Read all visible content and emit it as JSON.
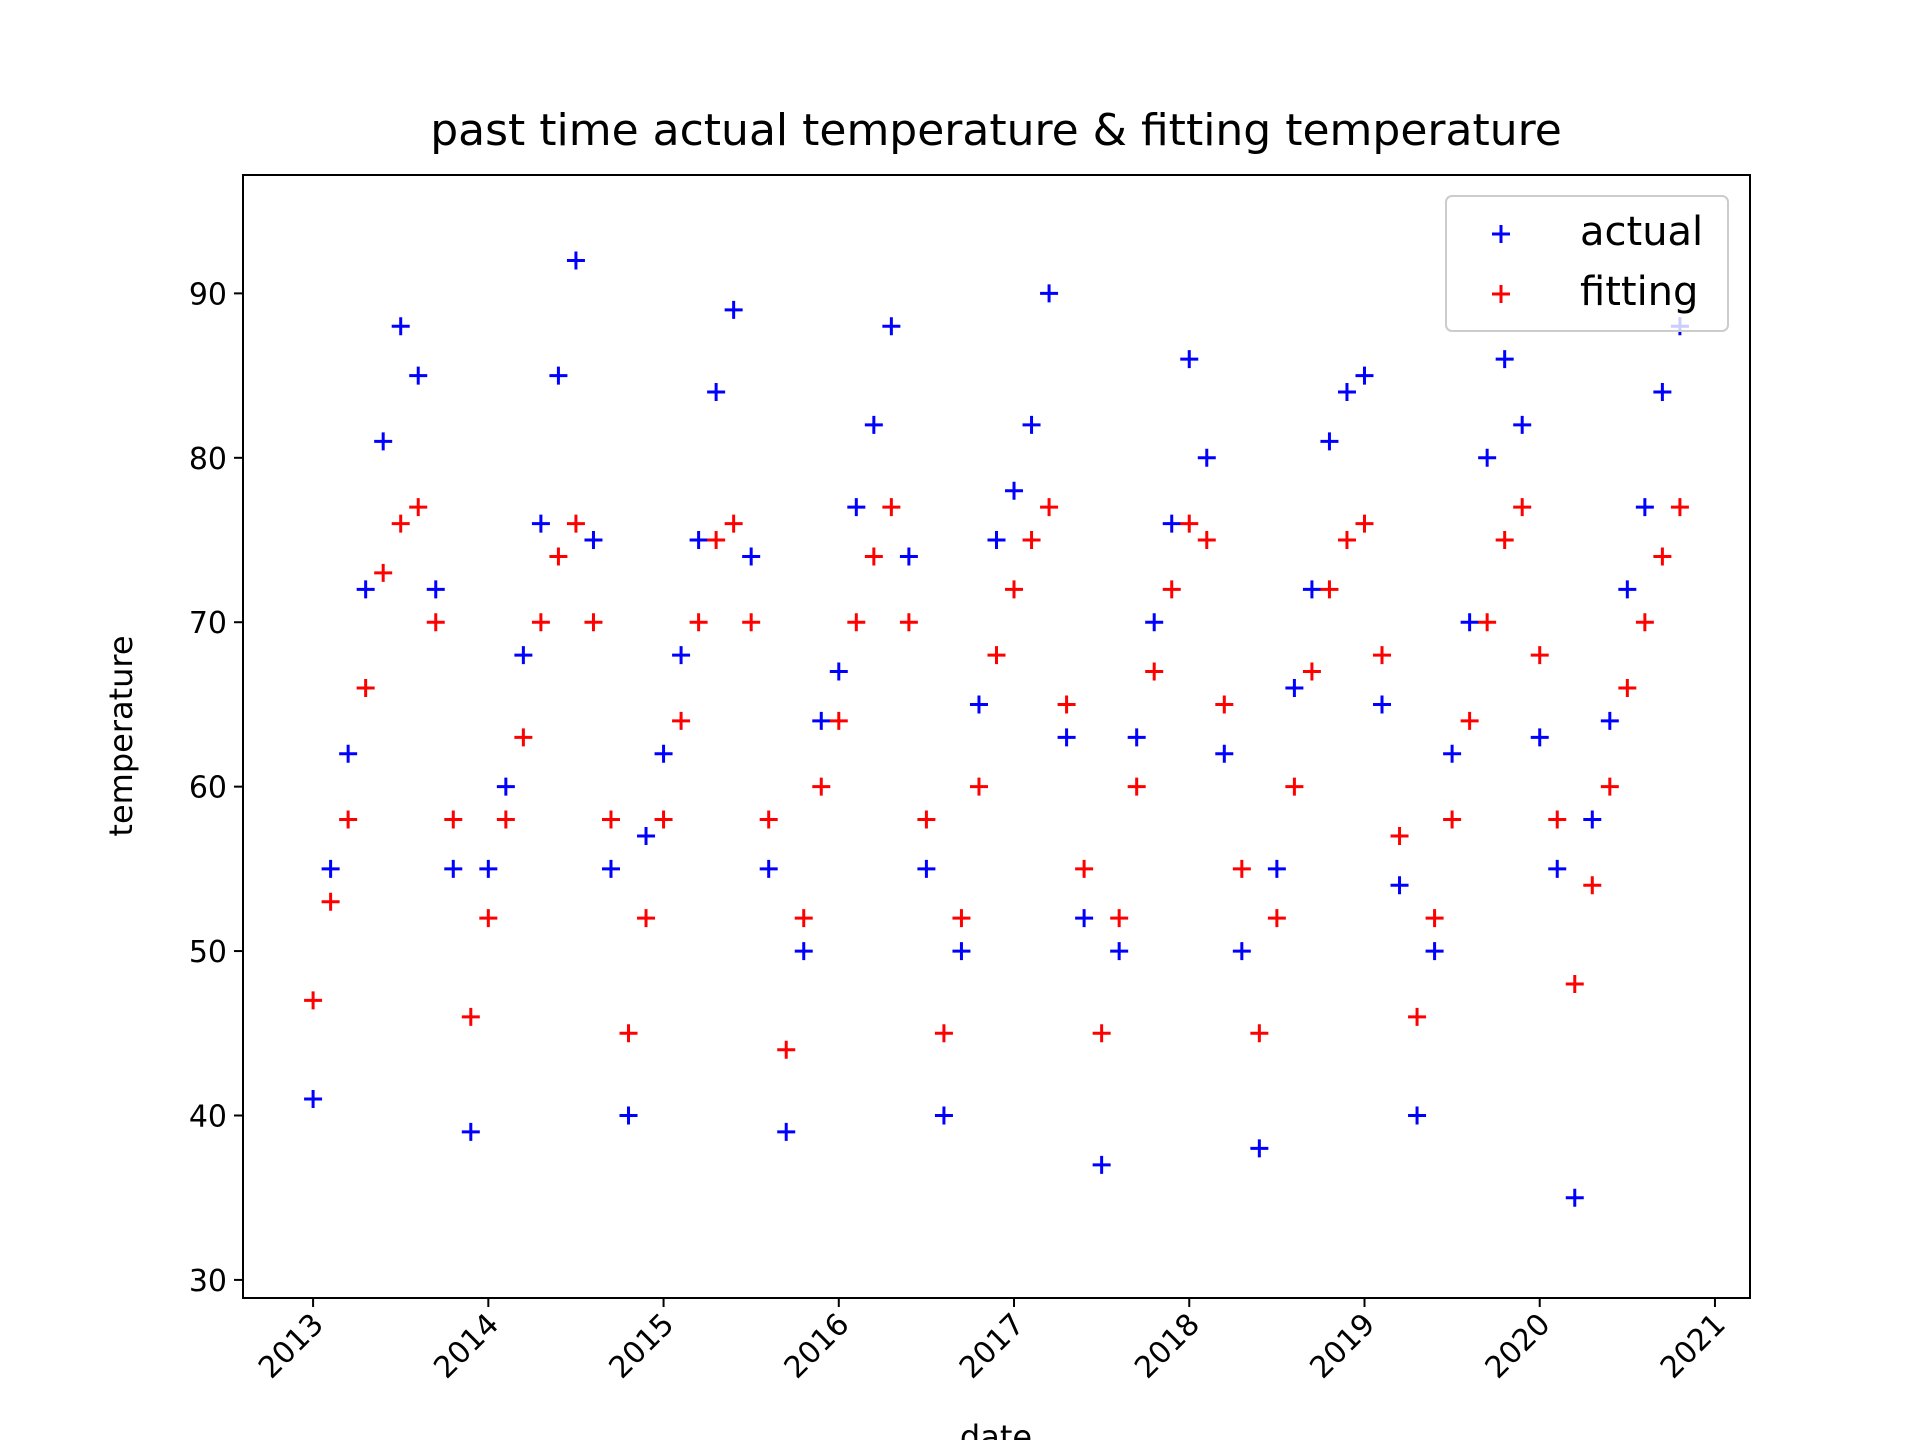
{
  "chart_data": {
    "type": "scatter",
    "title": "past time actual temperature & fitting temperature",
    "xlabel": "date",
    "ylabel": "temperature",
    "x": [
      2013.0,
      2013.1,
      2013.2,
      2013.3,
      2013.4,
      2013.5,
      2013.6,
      2013.7,
      2013.8,
      2013.9,
      2014.0,
      2014.1,
      2014.2,
      2014.3,
      2014.4,
      2014.5,
      2014.6,
      2014.7,
      2014.8,
      2014.9,
      2015.0,
      2015.1,
      2015.2,
      2015.3,
      2015.4,
      2015.5,
      2015.6,
      2015.7,
      2015.8,
      2015.9,
      2016.0,
      2016.1,
      2016.2,
      2016.3,
      2016.4,
      2016.5,
      2016.6,
      2016.7,
      2016.8,
      2016.9,
      2017.0,
      2017.1,
      2017.2,
      2017.3,
      2017.4,
      2017.5,
      2017.6,
      2017.7,
      2017.8,
      2017.9,
      2018.0,
      2018.1,
      2018.2,
      2018.3,
      2018.4,
      2018.5,
      2018.6,
      2018.7,
      2018.8,
      2018.9,
      2019.0,
      2019.1,
      2019.2,
      2019.3,
      2019.4,
      2019.5,
      2019.6,
      2019.7,
      2019.8,
      2019.9,
      2020.0,
      2020.1,
      2020.2,
      2020.3,
      2020.4,
      2020.5,
      2020.6,
      2020.7,
      2020.8
    ],
    "series": [
      {
        "name": "actual",
        "color": "#0000ff",
        "values": [
          41,
          55,
          62,
          72,
          81,
          88,
          85,
          72,
          55,
          39,
          55,
          60,
          68,
          76,
          85,
          92,
          75,
          55,
          40,
          57,
          62,
          68,
          75,
          84,
          89,
          74,
          55,
          39,
          50,
          64,
          67,
          77,
          82,
          88,
          74,
          55,
          40,
          50,
          65,
          75,
          78,
          82,
          90,
          63,
          52,
          37,
          50,
          63,
          70,
          76,
          86,
          80,
          62,
          50,
          38,
          55,
          66,
          72,
          81,
          84,
          85,
          65,
          54,
          40,
          50,
          62,
          70,
          80,
          86,
          82,
          63,
          55,
          35,
          58,
          64,
          72,
          77,
          84,
          88
        ]
      },
      {
        "name": "fitting",
        "color": "#ff0000",
        "values": [
          47,
          53,
          58,
          66,
          73,
          76,
          77,
          70,
          58,
          46,
          52,
          58,
          63,
          70,
          74,
          76,
          70,
          58,
          45,
          52,
          58,
          64,
          70,
          75,
          76,
          70,
          58,
          44,
          52,
          60,
          64,
          70,
          74,
          77,
          70,
          58,
          45,
          52,
          60,
          68,
          72,
          75,
          77,
          65,
          55,
          45,
          52,
          60,
          67,
          72,
          76,
          75,
          65,
          55,
          45,
          52,
          60,
          67,
          72,
          75,
          76,
          68,
          57,
          46,
          52,
          58,
          64,
          70,
          75,
          77,
          68,
          58,
          48,
          54,
          60,
          66,
          70,
          74,
          77
        ]
      }
    ],
    "xlim": [
      2012.6,
      2021.2
    ],
    "xticks": [
      2013,
      2014,
      2015,
      2016,
      2017,
      2018,
      2019,
      2020,
      2021
    ],
    "ylim": [
      28.9,
      97.2
    ],
    "yticks": [
      30,
      40,
      50,
      60,
      70,
      80,
      90
    ],
    "legend": "upper right"
  }
}
